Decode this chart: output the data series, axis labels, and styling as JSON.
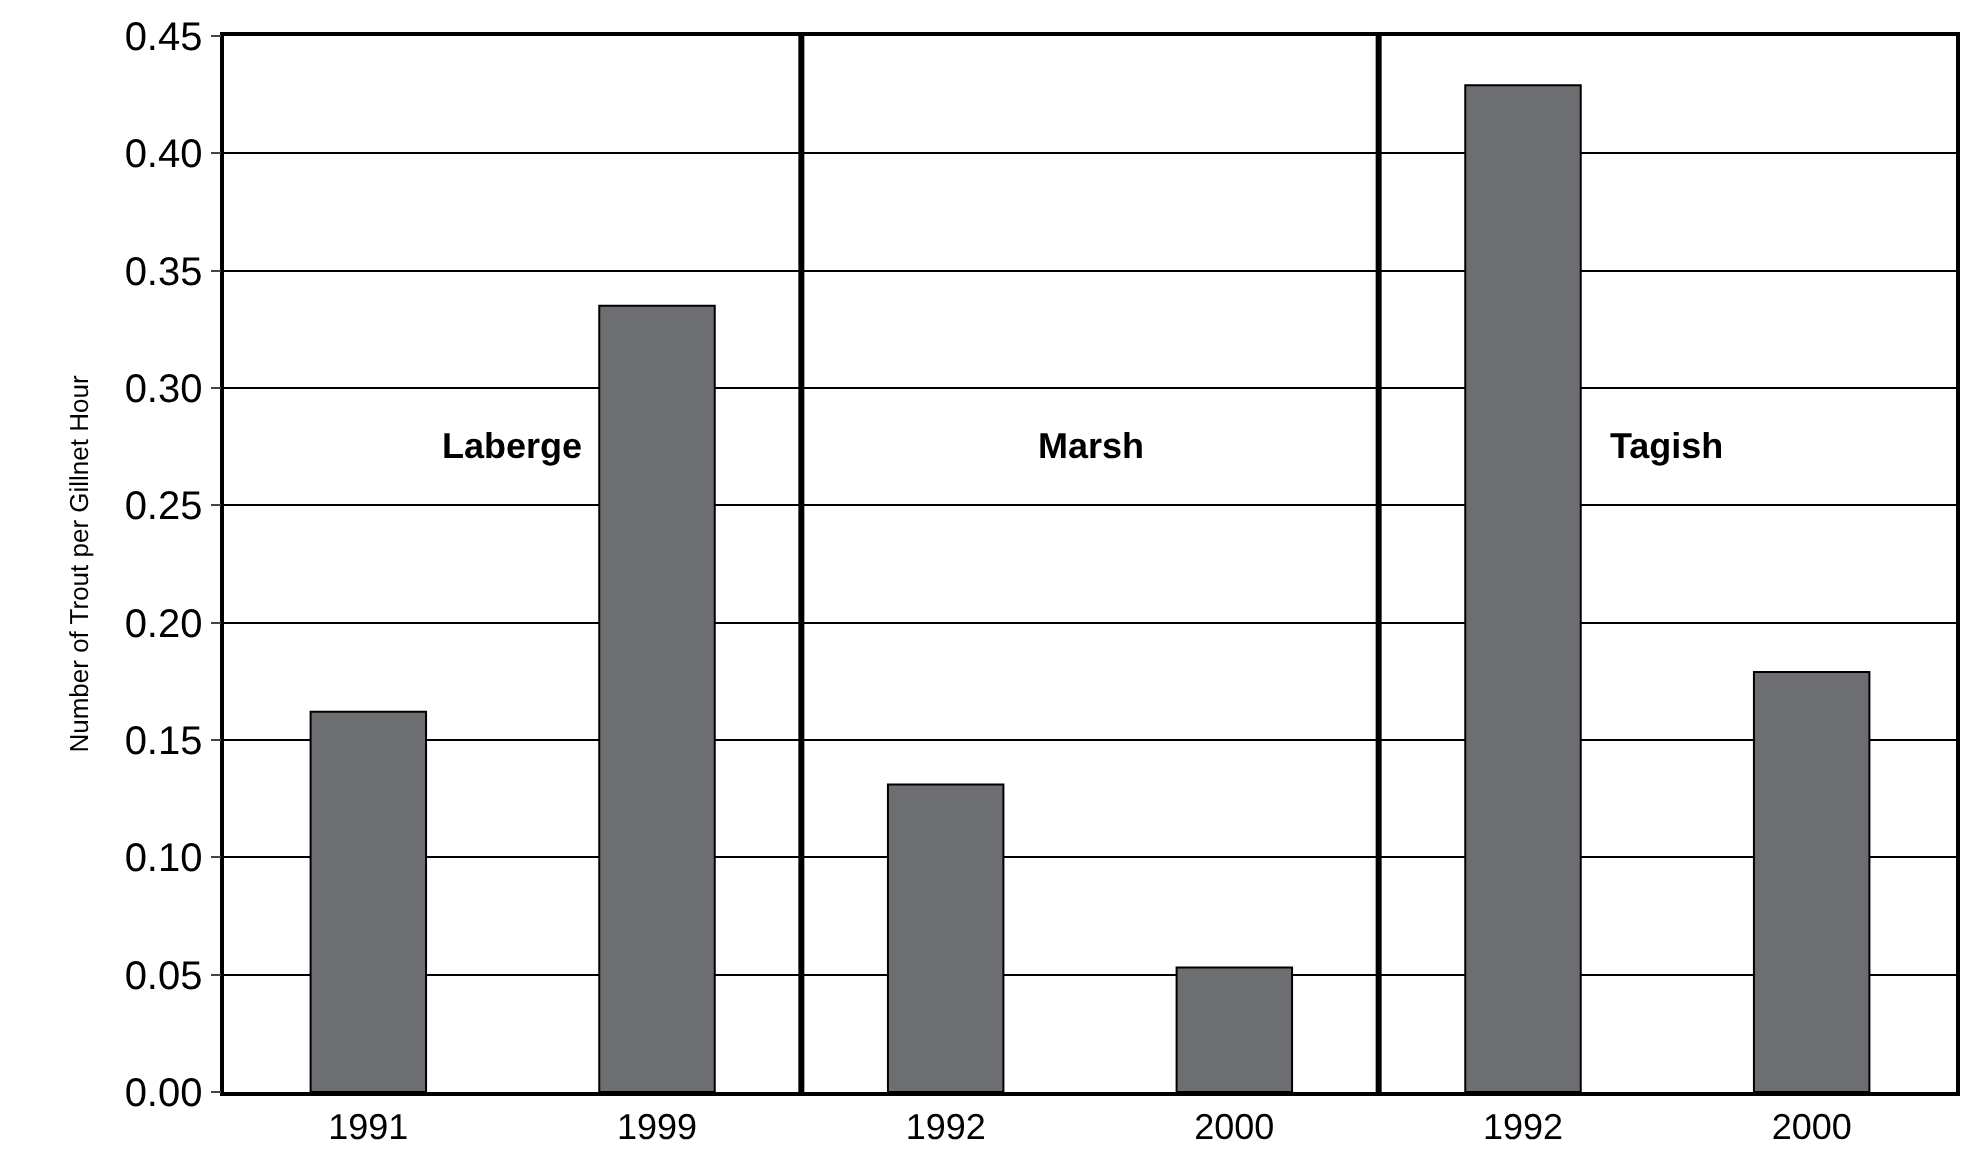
{
  "chart_data": {
    "type": "bar",
    "ylabel": "Number of Trout per Gillnet Hour",
    "categories": [
      "1991",
      "1999",
      "1992",
      "2000",
      "1992",
      "2000"
    ],
    "values": [
      0.162,
      0.335,
      0.131,
      0.053,
      0.429,
      0.179
    ],
    "color": "#6d6e71",
    "ylim": [
      0,
      0.45
    ],
    "yticks": [
      {
        "value": 0,
        "label": "0.00"
      },
      {
        "value": 0.05,
        "label": "0.05"
      },
      {
        "value": 0.1,
        "label": "0.10"
      },
      {
        "value": 0.15,
        "label": "0.15"
      },
      {
        "value": 0.2,
        "label": "0.20"
      },
      {
        "value": 0.25,
        "label": "0.25"
      },
      {
        "value": 0.3,
        "label": "0.30"
      },
      {
        "value": 0.35,
        "label": "0.35"
      },
      {
        "value": 0.4,
        "label": "0.40"
      },
      {
        "value": 0.45,
        "label": "0.45"
      }
    ],
    "grid": "y",
    "annotations": [
      "Laberge",
      "Marsh",
      "Tagish"
    ]
  }
}
